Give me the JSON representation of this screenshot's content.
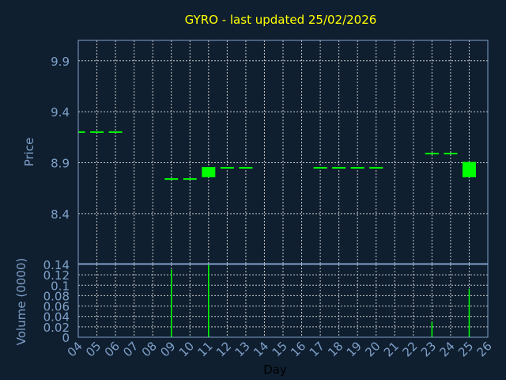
{
  "colors": {
    "background": "#0f1f30",
    "title": "#ffff00",
    "axis": "#7fa0c8",
    "grid": "#c8c8c8",
    "up": "#00ff00",
    "xlabel": "#000000"
  },
  "chart_data": [
    {
      "type": "candlestick",
      "title": "GYRO - last updated 25/02/2026",
      "ylabel": "Price",
      "ylim": [
        7.91,
        10.1
      ],
      "yticks": [
        "8.4",
        "8.9",
        "9.4",
        "9.9"
      ],
      "grid": true,
      "points": [
        {
          "day": "04",
          "open": 9.2,
          "close": 9.2
        },
        {
          "day": "05",
          "open": 9.2,
          "close": 9.2
        },
        {
          "day": "06",
          "open": 9.2,
          "close": 9.2
        },
        {
          "day": "09",
          "open": 8.74,
          "close": 8.74
        },
        {
          "day": "10",
          "open": 8.74,
          "close": 8.74
        },
        {
          "day": "11",
          "open": 8.75,
          "close": 8.85
        },
        {
          "day": "12",
          "open": 8.85,
          "close": 8.85
        },
        {
          "day": "13",
          "open": 8.85,
          "close": 8.85
        },
        {
          "day": "17",
          "open": 8.85,
          "close": 8.85
        },
        {
          "day": "18",
          "open": 8.85,
          "close": 8.85
        },
        {
          "day": "19",
          "open": 8.85,
          "close": 8.85
        },
        {
          "day": "20",
          "open": 8.85,
          "close": 8.85
        },
        {
          "day": "23",
          "open": 8.99,
          "close": 8.99
        },
        {
          "day": "24",
          "open": 8.99,
          "close": 8.99
        },
        {
          "day": "25",
          "open": 8.75,
          "close": 8.9
        }
      ]
    },
    {
      "type": "bar",
      "ylabel": "Volume (0000)",
      "xlabel": "Day",
      "ylim": [
        0,
        0.14
      ],
      "yticks": [
        "0",
        "0.02",
        "0.04",
        "0.06",
        "0.08",
        "0.1",
        "0.12",
        "0.14"
      ],
      "categories": [
        "04",
        "05",
        "06",
        "07",
        "08",
        "09",
        "10",
        "11",
        "12",
        "13",
        "14",
        "15",
        "16",
        "17",
        "18",
        "19",
        "20",
        "21",
        "22",
        "23",
        "24",
        "25",
        "26"
      ],
      "grid": true,
      "bars": [
        {
          "day": "09",
          "value": 0.13
        },
        {
          "day": "10",
          "value": 0.001
        },
        {
          "day": "11",
          "value": 0.14
        },
        {
          "day": "23",
          "value": 0.03
        },
        {
          "day": "25",
          "value": 0.093
        }
      ]
    }
  ]
}
